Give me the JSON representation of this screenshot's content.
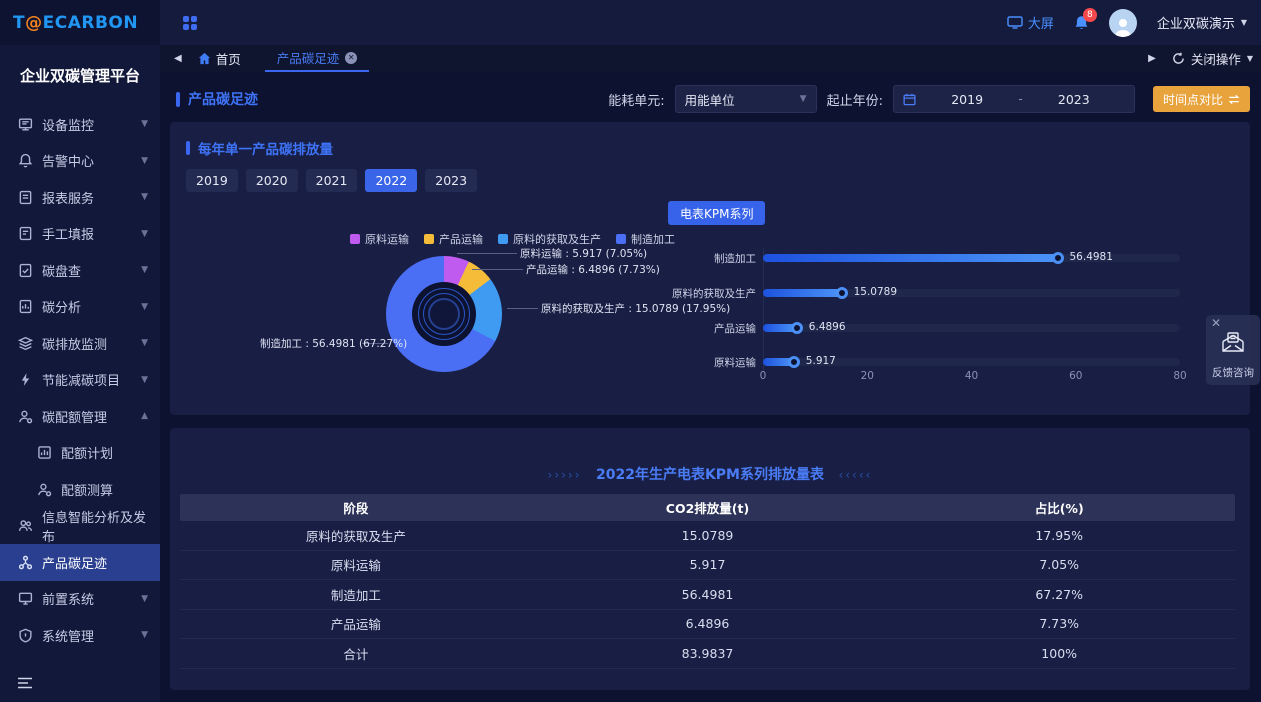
{
  "app": {
    "logo_t": "T",
    "logo_at": "@",
    "logo_rest": "ECARBON",
    "platform_title": "企业双碳管理平台"
  },
  "header": {
    "big_screen_label": "大屏",
    "notification_count": "8",
    "user_name": "企业双碳演示"
  },
  "tabbar": {
    "home_label": "首页",
    "active_tab_label": "产品碳足迹",
    "close_ops_label": "关闭操作"
  },
  "sidebar": {
    "items": [
      {
        "label": "设备监控",
        "icon": "device-monitor-icon",
        "chevron": "down"
      },
      {
        "label": "告警中心",
        "icon": "alarm-bell-icon",
        "chevron": "down"
      },
      {
        "label": "报表服务",
        "icon": "report-doc-icon",
        "chevron": "down"
      },
      {
        "label": "手工填报",
        "icon": "manual-form-icon",
        "chevron": "down"
      },
      {
        "label": "碳盘查",
        "icon": "carbon-check-icon",
        "chevron": "down"
      },
      {
        "label": "碳分析",
        "icon": "carbon-analysis-icon",
        "chevron": "down"
      },
      {
        "label": "碳排放监测",
        "icon": "emission-layers-icon",
        "chevron": "down"
      },
      {
        "label": "节能减碳项目",
        "icon": "energy-bolt-icon",
        "chevron": "down"
      },
      {
        "label": "碳配额管理",
        "icon": "quota-manage-icon",
        "chevron": "up"
      },
      {
        "label": "配额计划",
        "icon": "quota-plan-icon",
        "child": true
      },
      {
        "label": "配额测算",
        "icon": "quota-calc-icon",
        "child": true
      },
      {
        "label": "信息智能分析及发布",
        "icon": "info-analysis-icon"
      },
      {
        "label": "产品碳足迹",
        "icon": "product-footprint-icon",
        "active": true
      },
      {
        "label": "前置系统",
        "icon": "front-system-icon",
        "chevron": "down"
      },
      {
        "label": "系统管理",
        "icon": "system-manage-icon",
        "chevron": "down"
      }
    ]
  },
  "filters": {
    "page_title": "产品碳足迹",
    "energy_unit_label": "能耗单元:",
    "energy_unit_value": "用能单位",
    "year_range_label": "起止年份:",
    "year_start": "2019",
    "year_separator": "-",
    "year_end": "2023",
    "compare_button_label": "时间点对比"
  },
  "section": {
    "title": "每年单一产品碳排放量",
    "years": [
      "2019",
      "2020",
      "2021",
      "2022",
      "2023"
    ],
    "active_year": "2022",
    "kpm_button_label": "电表KPM系列"
  },
  "chart_data": [
    {
      "type": "pie",
      "title": "每年单一产品碳排放量 (2022)",
      "labels": [
        "原料运输",
        "产品运输",
        "原料的获取及生产",
        "制造加工"
      ],
      "values": [
        5.917,
        6.4896,
        15.0789,
        56.4981
      ],
      "percents": [
        "7.05%",
        "7.73%",
        "17.95%",
        "67.27%"
      ],
      "colors": [
        "#c05bf0",
        "#f5bc3a",
        "#3f9bf2",
        "#4a6ff5"
      ],
      "legend_position": "top",
      "annotations": [
        "原料运输 : 5.917 (7.05%)",
        "产品运输 : 6.4896 (7.73%)",
        "原料的获取及生产 : 15.0789 (17.95%)",
        "制造加工 : 56.4981 (67.27%)"
      ]
    },
    {
      "type": "bar",
      "orientation": "horizontal",
      "categories": [
        "制造加工",
        "原料的获取及生产",
        "产品运输",
        "原料运输"
      ],
      "values": [
        56.4981,
        15.0789,
        6.4896,
        5.917
      ],
      "value_labels": [
        "56.4981",
        "15.0789",
        "6.4896",
        "5.917"
      ],
      "xlim": [
        0,
        80
      ],
      "x_ticks": [
        "0",
        "20",
        "40",
        "60",
        "80"
      ],
      "grid": false
    }
  ],
  "table": {
    "decor_left": "›››››",
    "decor_right": "‹‹‹‹‹",
    "title": "2022年生产电表KPM系列排放量表",
    "headers": [
      "阶段",
      "CO2排放量(t)",
      "占比(%)"
    ],
    "rows": [
      [
        "原料的获取及生产",
        "15.0789",
        "17.95%"
      ],
      [
        "原料运输",
        "5.917",
        "7.05%"
      ],
      [
        "制造加工",
        "56.4981",
        "67.27%"
      ],
      [
        "产品运输",
        "6.4896",
        "7.73%"
      ],
      [
        "合计",
        "83.9837",
        "100%"
      ]
    ]
  },
  "feedback": {
    "label": "反馈咨询"
  },
  "colors": {
    "accent_blue": "#3a66f0",
    "title_blue": "#4a7cf5",
    "orange_button": "#e8a33d",
    "active_year_chip": "#3a65e8",
    "badge_red": "#f5484d",
    "logo_blue": "#2196f3",
    "logo_orange": "#f0821e"
  }
}
